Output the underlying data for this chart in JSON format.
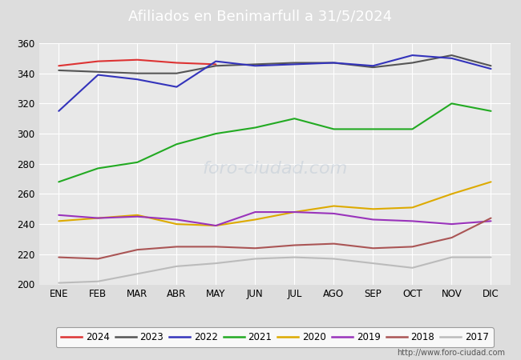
{
  "title": "Afiliados en Benimarfull a 31/5/2024",
  "title_color": "#ffffff",
  "title_bg_color": "#5599dd",
  "months": [
    "ENE",
    "FEB",
    "MAR",
    "ABR",
    "MAY",
    "JUN",
    "JUL",
    "AGO",
    "SEP",
    "OCT",
    "NOV",
    "DIC"
  ],
  "ylim": [
    200,
    360
  ],
  "yticks": [
    200,
    220,
    240,
    260,
    280,
    300,
    320,
    340,
    360
  ],
  "series": {
    "2024": {
      "color": "#dd3333",
      "data": [
        345,
        348,
        349,
        347,
        346,
        null,
        null,
        null,
        null,
        null,
        null,
        null
      ]
    },
    "2023": {
      "color": "#555555",
      "data": [
        342,
        341,
        340,
        340,
        345,
        346,
        347,
        347,
        344,
        347,
        352,
        345
      ]
    },
    "2022": {
      "color": "#3333bb",
      "data": [
        315,
        339,
        336,
        331,
        348,
        345,
        346,
        347,
        345,
        352,
        350,
        343
      ]
    },
    "2021": {
      "color": "#22aa22",
      "data": [
        268,
        277,
        281,
        293,
        300,
        304,
        310,
        303,
        303,
        303,
        320,
        315
      ]
    },
    "2020": {
      "color": "#ddaa00",
      "data": [
        242,
        244,
        246,
        240,
        239,
        243,
        248,
        252,
        250,
        251,
        260,
        268
      ]
    },
    "2019": {
      "color": "#9933bb",
      "data": [
        246,
        244,
        245,
        243,
        239,
        248,
        248,
        247,
        243,
        242,
        240,
        242
      ]
    },
    "2018": {
      "color": "#aa5555",
      "data": [
        218,
        217,
        223,
        225,
        225,
        224,
        226,
        227,
        224,
        225,
        231,
        244
      ]
    },
    "2017": {
      "color": "#bbbbbb",
      "data": [
        201,
        202,
        207,
        212,
        214,
        217,
        218,
        217,
        214,
        211,
        218,
        218
      ]
    }
  },
  "background_color": "#dddddd",
  "plot_bg_color": "#e8e8e8",
  "grid_color": "#ffffff",
  "watermark_plot": "FORO-CIUDAD.COM",
  "watermark_url": "http://www.foro-ciudad.com",
  "legend_years": [
    "2024",
    "2023",
    "2022",
    "2021",
    "2020",
    "2019",
    "2018",
    "2017"
  ]
}
